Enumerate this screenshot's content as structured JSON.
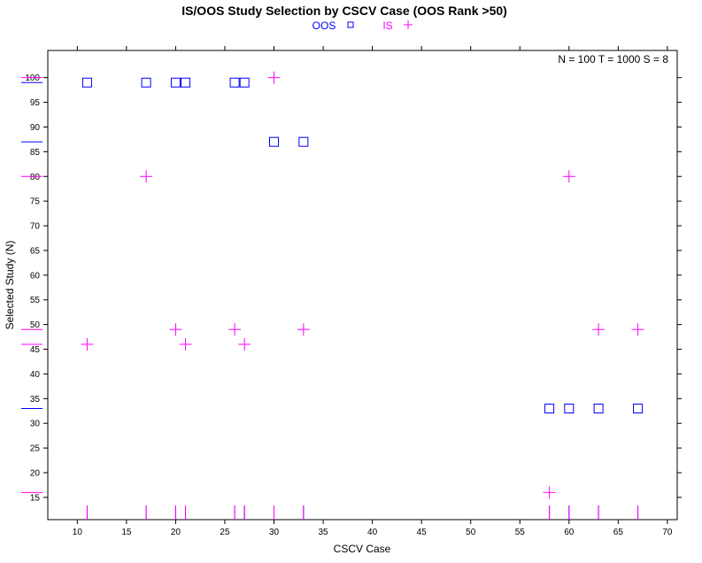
{
  "chart_data": {
    "type": "scatter",
    "title": "IS/OOS Study Selection by CSCV Case (OOS Rank >50)",
    "xlabel": "CSCV Case",
    "ylabel": "Selected Study (N)",
    "annotation": "N = 100  T = 1000  S = 8",
    "xlim": [
      7,
      71
    ],
    "ylim": [
      10.5,
      105.5
    ],
    "xticks": [
      10,
      15,
      20,
      25,
      30,
      35,
      40,
      45,
      50,
      55,
      60,
      65,
      70
    ],
    "yticks": [
      15,
      20,
      25,
      30,
      35,
      40,
      45,
      50,
      55,
      60,
      65,
      70,
      75,
      80,
      85,
      90,
      95,
      100
    ],
    "legend": {
      "placement": "top-center"
    },
    "series": [
      {
        "name": "OOS",
        "marker": "square",
        "color": "#0000ff",
        "points": [
          {
            "x": 11,
            "y": 99
          },
          {
            "x": 17,
            "y": 99
          },
          {
            "x": 20,
            "y": 99
          },
          {
            "x": 21,
            "y": 99
          },
          {
            "x": 26,
            "y": 99
          },
          {
            "x": 27,
            "y": 99
          },
          {
            "x": 30,
            "y": 87
          },
          {
            "x": 33,
            "y": 87
          },
          {
            "x": 58,
            "y": 33
          },
          {
            "x": 60,
            "y": 33
          },
          {
            "x": 63,
            "y": 33
          },
          {
            "x": 67,
            "y": 33
          }
        ]
      },
      {
        "name": "IS",
        "marker": "plus",
        "color": "#ff00ff",
        "points": [
          {
            "x": 11,
            "y": 46
          },
          {
            "x": 17,
            "y": 80
          },
          {
            "x": 20,
            "y": 49
          },
          {
            "x": 21,
            "y": 46
          },
          {
            "x": 26,
            "y": 49
          },
          {
            "x": 27,
            "y": 46
          },
          {
            "x": 30,
            "y": 100
          },
          {
            "x": 33,
            "y": 49
          },
          {
            "x": 58,
            "y": 16
          },
          {
            "x": 60,
            "y": 80
          },
          {
            "x": 63,
            "y": 49
          },
          {
            "x": 67,
            "y": 49
          }
        ]
      }
    ]
  }
}
